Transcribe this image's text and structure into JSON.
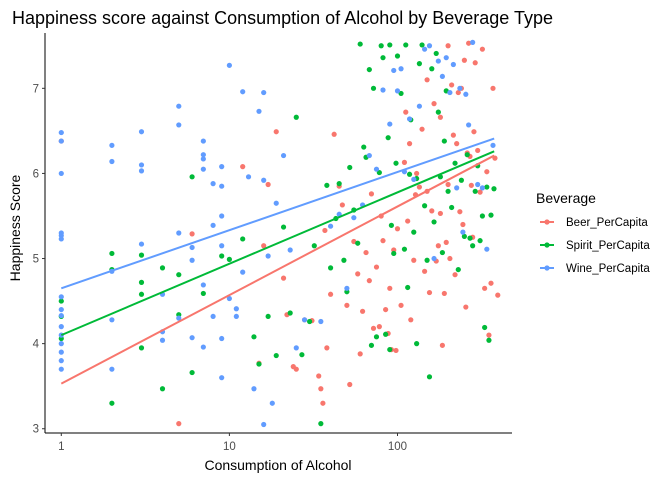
{
  "chart_data": {
    "type": "scatter",
    "title": "Happiness score against Consumption of Alcohol by Beverage Type",
    "xlabel": "Consumption of Alcohol",
    "ylabel": "Happiness Score",
    "x_scale": "log10",
    "xlim": [
      0.8,
      480
    ],
    "ylim": [
      2.95,
      7.65
    ],
    "xticks": [
      1,
      10,
      100
    ],
    "xtick_labels": [
      "1",
      "10",
      "100"
    ],
    "yticks": [
      3,
      4,
      5,
      6,
      7
    ],
    "ytick_labels": [
      "3",
      "4",
      "5",
      "6",
      "7"
    ],
    "grid": false,
    "legend": {
      "title": "Beverage",
      "position": "right"
    },
    "series": [
      {
        "name": "Beer_PerCapita",
        "color": "#f8766d",
        "trend": {
          "x": [
            1,
            376
          ],
          "y": [
            3.53,
            6.21
          ]
        },
        "points": [
          [
            1,
            6.38
          ],
          [
            5,
            3.06
          ],
          [
            6,
            5.29
          ],
          [
            12,
            6.08
          ],
          [
            15,
            3.77
          ],
          [
            16,
            5.15
          ],
          [
            17,
            5.87
          ],
          [
            19,
            6.49
          ],
          [
            21,
            4.77
          ],
          [
            22,
            4.34
          ],
          [
            24,
            3.73
          ],
          [
            25,
            3.7
          ],
          [
            28,
            4.28
          ],
          [
            31,
            4.27
          ],
          [
            34,
            3.62
          ],
          [
            35,
            3.47
          ],
          [
            36,
            3.3
          ],
          [
            37,
            5.33
          ],
          [
            38,
            3.95
          ],
          [
            40,
            4.58
          ],
          [
            42,
            6.46
          ],
          [
            45,
            5.85
          ],
          [
            47,
            5.63
          ],
          [
            50,
            4.45
          ],
          [
            52,
            3.52
          ],
          [
            55,
            5.2
          ],
          [
            58,
            4.82
          ],
          [
            60,
            3.88
          ],
          [
            62,
            4.38
          ],
          [
            65,
            5.07
          ],
          [
            68,
            4.74
          ],
          [
            70,
            5.76
          ],
          [
            72,
            4.18
          ],
          [
            75,
            4.9
          ],
          [
            78,
            4.2
          ],
          [
            80,
            5.5
          ],
          [
            82,
            5.21
          ],
          [
            85,
            4.4
          ],
          [
            88,
            4.12
          ],
          [
            90,
            4.65
          ],
          [
            92,
            3.93
          ],
          [
            95,
            5.1
          ],
          [
            98,
            3.92
          ],
          [
            100,
            5.35
          ],
          [
            105,
            4.45
          ],
          [
            110,
            6.13
          ],
          [
            112,
            6.72
          ],
          [
            115,
            5.44
          ],
          [
            118,
            6.35
          ],
          [
            120,
            4.28
          ],
          [
            125,
            4.98
          ],
          [
            128,
            5.75
          ],
          [
            130,
            6.0
          ],
          [
            135,
            5.84
          ],
          [
            140,
            6.52
          ],
          [
            145,
            4.85
          ],
          [
            150,
            7.1
          ],
          [
            155,
            4.6
          ],
          [
            160,
            5.56
          ],
          [
            165,
            6.82
          ],
          [
            170,
            4.97
          ],
          [
            175,
            5.15
          ],
          [
            180,
            6.66
          ],
          [
            185,
            3.98
          ],
          [
            190,
            4.59
          ],
          [
            195,
            5.19
          ],
          [
            200,
            7.5
          ],
          [
            205,
            5.0
          ],
          [
            210,
            7.04
          ],
          [
            215,
            6.45
          ],
          [
            220,
            4.81
          ],
          [
            225,
            6.35
          ],
          [
            230,
            6.95
          ],
          [
            235,
            5.55
          ],
          [
            240,
            7.0
          ],
          [
            245,
            5.4
          ],
          [
            250,
            7.33
          ],
          [
            255,
            4.43
          ],
          [
            260,
            6.24
          ],
          [
            265,
            7.53
          ],
          [
            270,
            6.2
          ],
          [
            275,
            5.86
          ],
          [
            280,
            5.25
          ],
          [
            285,
            6.49
          ],
          [
            290,
            7.3
          ],
          [
            300,
            6.27
          ],
          [
            310,
            5.78
          ],
          [
            320,
            7.46
          ],
          [
            330,
            4.65
          ],
          [
            340,
            6.02
          ],
          [
            350,
            4.1
          ],
          [
            360,
            4.71
          ],
          [
            370,
            7.0
          ],
          [
            380,
            6.18
          ],
          [
            395,
            4.57
          ],
          [
            200,
            5.87
          ],
          [
            180,
            5.53
          ],
          [
            150,
            5.79
          ]
        ]
      },
      {
        "name": "Spirit_PerCapita",
        "color": "#00ba38",
        "trend": {
          "x": [
            1,
            376
          ],
          "y": [
            4.1,
            6.26
          ]
        },
        "points": [
          [
            1,
            4.5
          ],
          [
            1,
            4.06
          ],
          [
            1,
            4.32
          ],
          [
            2,
            5.06
          ],
          [
            2,
            3.3
          ],
          [
            2,
            4.87
          ],
          [
            3,
            4.58
          ],
          [
            3,
            5.04
          ],
          [
            3,
            4.72
          ],
          [
            3,
            3.95
          ],
          [
            4,
            3.47
          ],
          [
            4,
            4.89
          ],
          [
            5,
            4.34
          ],
          [
            5,
            4.81
          ],
          [
            6,
            3.66
          ],
          [
            6,
            5.96
          ],
          [
            7,
            4.59
          ],
          [
            9,
            5.03
          ],
          [
            10,
            4.99
          ],
          [
            12,
            5.23
          ],
          [
            14,
            4.08
          ],
          [
            15,
            3.76
          ],
          [
            17,
            4.32
          ],
          [
            19,
            3.86
          ],
          [
            21,
            5.37
          ],
          [
            23,
            4.36
          ],
          [
            25,
            6.66
          ],
          [
            27,
            3.87
          ],
          [
            30,
            4.26
          ],
          [
            32,
            5.15
          ],
          [
            35,
            3.06
          ],
          [
            38,
            5.86
          ],
          [
            40,
            4.89
          ],
          [
            43,
            5.47
          ],
          [
            45,
            5.88
          ],
          [
            48,
            4.98
          ],
          [
            50,
            4.61
          ],
          [
            52,
            6.07
          ],
          [
            55,
            5.57
          ],
          [
            58,
            5.18
          ],
          [
            60,
            7.52
          ],
          [
            63,
            6.31
          ],
          [
            65,
            6.19
          ],
          [
            68,
            7.22
          ],
          [
            70,
            3.98
          ],
          [
            72,
            7.0
          ],
          [
            75,
            4.08
          ],
          [
            78,
            6.01
          ],
          [
            80,
            7.5
          ],
          [
            82,
            7.36
          ],
          [
            85,
            4.11
          ],
          [
            88,
            6.42
          ],
          [
            90,
            7.51
          ],
          [
            92,
            5.39
          ],
          [
            95,
            5.06
          ],
          [
            98,
            6.12
          ],
          [
            100,
            7.38
          ],
          [
            105,
            6.94
          ],
          [
            110,
            5.11
          ],
          [
            112,
            7.51
          ],
          [
            115,
            4.66
          ],
          [
            118,
            5.99
          ],
          [
            120,
            6.63
          ],
          [
            125,
            5.31
          ],
          [
            130,
            5.94
          ],
          [
            135,
            7.29
          ],
          [
            140,
            7.51
          ],
          [
            145,
            5.62
          ],
          [
            150,
            4.98
          ],
          [
            155,
            3.61
          ],
          [
            160,
            7.23
          ],
          [
            165,
            5.43
          ],
          [
            170,
            7.41
          ],
          [
            175,
            6.72
          ],
          [
            180,
            5.96
          ],
          [
            185,
            5.07
          ],
          [
            190,
            6.38
          ],
          [
            195,
            6.97
          ],
          [
            200,
            5.79
          ],
          [
            210,
            5.6
          ],
          [
            220,
            6.12
          ],
          [
            230,
            4.87
          ],
          [
            240,
            5.92
          ],
          [
            250,
            5.26
          ],
          [
            260,
            6.22
          ],
          [
            270,
            5.24
          ],
          [
            280,
            5.15
          ],
          [
            290,
            5.79
          ],
          [
            300,
            6.09
          ],
          [
            310,
            5.21
          ],
          [
            320,
            5.5
          ],
          [
            330,
            4.19
          ],
          [
            340,
            5.84
          ],
          [
            350,
            4.04
          ],
          [
            360,
            5.51
          ],
          [
            375,
            5.82
          ],
          [
            130,
            4.0
          ],
          [
            90,
            3.93
          ]
        ]
      },
      {
        "name": "Wine_PerCapita",
        "color": "#619cff",
        "trend": {
          "x": [
            1,
            376
          ],
          "y": [
            4.65,
            6.41
          ]
        },
        "points": [
          [
            1,
            6.48
          ],
          [
            1,
            6.38
          ],
          [
            1,
            6.0
          ],
          [
            1,
            5.3
          ],
          [
            1,
            5.27
          ],
          [
            1,
            5.23
          ],
          [
            1,
            4.55
          ],
          [
            1,
            4.4
          ],
          [
            1,
            4.33
          ],
          [
            1,
            4.2
          ],
          [
            1,
            4.1
          ],
          [
            1,
            4.0
          ],
          [
            1,
            3.9
          ],
          [
            1,
            3.8
          ],
          [
            1,
            3.7
          ],
          [
            2,
            6.33
          ],
          [
            2,
            6.14
          ],
          [
            2,
            4.85
          ],
          [
            2,
            4.28
          ],
          [
            2,
            3.7
          ],
          [
            3,
            6.49
          ],
          [
            3,
            6.1
          ],
          [
            3,
            6.03
          ],
          [
            3,
            5.17
          ],
          [
            4,
            4.58
          ],
          [
            4,
            4.14
          ],
          [
            4,
            4.04
          ],
          [
            5,
            6.79
          ],
          [
            5,
            6.57
          ],
          [
            5,
            5.3
          ],
          [
            5,
            4.3
          ],
          [
            6,
            5.13
          ],
          [
            6,
            4.98
          ],
          [
            6,
            4.07
          ],
          [
            7,
            6.38
          ],
          [
            7,
            6.22
          ],
          [
            7,
            6.17
          ],
          [
            7,
            6.05
          ],
          [
            7,
            4.69
          ],
          [
            7,
            3.96
          ],
          [
            8,
            5.88
          ],
          [
            8,
            5.39
          ],
          [
            8,
            4.32
          ],
          [
            9,
            6.08
          ],
          [
            9,
            5.85
          ],
          [
            9,
            5.5
          ],
          [
            9,
            5.15
          ],
          [
            9,
            4.06
          ],
          [
            9,
            3.6
          ],
          [
            10,
            7.27
          ],
          [
            10,
            4.53
          ],
          [
            11,
            4.41
          ],
          [
            11,
            4.32
          ],
          [
            12,
            6.96
          ],
          [
            12,
            4.84
          ],
          [
            13,
            5.96
          ],
          [
            14,
            3.47
          ],
          [
            15,
            6.73
          ],
          [
            16,
            6.95
          ],
          [
            16,
            5.92
          ],
          [
            16,
            3.05
          ],
          [
            17,
            5.03
          ],
          [
            18,
            3.3
          ],
          [
            19,
            5.65
          ],
          [
            21,
            6.21
          ],
          [
            23,
            5.1
          ],
          [
            25,
            3.95
          ],
          [
            28,
            4.28
          ],
          [
            35,
            4.26
          ],
          [
            40,
            5.38
          ],
          [
            45,
            5.52
          ],
          [
            50,
            4.65
          ],
          [
            55,
            5.48
          ],
          [
            62,
            5.63
          ],
          [
            68,
            6.21
          ],
          [
            75,
            6.05
          ],
          [
            82,
            6.98
          ],
          [
            90,
            6.58
          ],
          [
            95,
            7.21
          ],
          [
            100,
            6.97
          ],
          [
            105,
            7.23
          ],
          [
            110,
            6.02
          ],
          [
            118,
            6.64
          ],
          [
            125,
            5.93
          ],
          [
            135,
            6.79
          ],
          [
            145,
            7.46
          ],
          [
            155,
            7.5
          ],
          [
            165,
            5.0
          ],
          [
            175,
            7.32
          ],
          [
            185,
            7.14
          ],
          [
            195,
            7.36
          ],
          [
            205,
            6.95
          ],
          [
            215,
            7.28
          ],
          [
            225,
            5.83
          ],
          [
            235,
            7.0
          ],
          [
            245,
            5.31
          ],
          [
            255,
            6.93
          ],
          [
            265,
            6.57
          ],
          [
            280,
            7.54
          ],
          [
            300,
            5.87
          ],
          [
            320,
            5.83
          ],
          [
            340,
            5.11
          ],
          [
            370,
            6.33
          ]
        ]
      }
    ]
  }
}
